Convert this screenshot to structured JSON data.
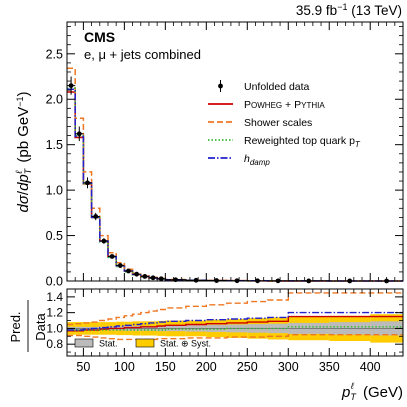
{
  "header": {
    "luminosity": "35.9 fb",
    "luminosity_exp": "−1",
    "energy": "(13 TeV)",
    "experiment": "CMS",
    "channel": "e, μ + jets combined"
  },
  "chart_data": {
    "type": "line",
    "upper": {
      "ylabel": "dσ/dp_T^ℓ (pb GeV⁻¹)",
      "ylim": [
        0,
        2.85
      ],
      "yticks": [
        0,
        0.5,
        1.0,
        1.5,
        2.0,
        2.5
      ],
      "ytick_labels": [
        "0.0",
        "0.5",
        "1.0",
        "1.5",
        "2.0",
        "2.5"
      ],
      "bin_edges": [
        30,
        40,
        50,
        60,
        70,
        80,
        90,
        100,
        110,
        120,
        130,
        140,
        150,
        175,
        200,
        225,
        250,
        275,
        300,
        350,
        400,
        440
      ],
      "series": [
        {
          "name": "Unfolded data",
          "style": "points",
          "color": "#000000",
          "values": [
            2.15,
            1.62,
            1.08,
            0.71,
            0.44,
            0.27,
            0.17,
            0.11,
            0.075,
            0.05,
            0.035,
            0.025,
            0.014,
            0.008,
            0.005,
            0.003,
            0.002,
            0.0015,
            0.001,
            0.0005,
            0.0003
          ],
          "errors": [
            0.1,
            0.08,
            0.06,
            0.04,
            0.03,
            0.02,
            0.015,
            0.01,
            0.008,
            0.006,
            0.005,
            0.004,
            0.003,
            0.002,
            0.0015,
            0.001,
            0.001,
            0.001,
            0.0005,
            0.0003,
            0.0002
          ]
        },
        {
          "name": "POWHEG + PYTHIA",
          "style": "step",
          "color": "#cc0000",
          "values": [
            2.08,
            1.58,
            1.07,
            0.7,
            0.44,
            0.27,
            0.17,
            0.11,
            0.072,
            0.048,
            0.033,
            0.023,
            0.013,
            0.0075,
            0.0045,
            0.003,
            0.002,
            0.0012,
            0.0008,
            0.0004,
            0.0002
          ]
        },
        {
          "name": "Shower scales",
          "style": "step-dashed",
          "color": "#ee7722",
          "values": [
            2.34,
            1.79,
            1.2,
            0.8,
            0.5,
            0.31,
            0.2,
            0.13,
            0.085,
            0.057,
            0.04,
            0.028,
            0.016,
            0.009,
            0.0055,
            0.0035,
            0.0024,
            0.0015,
            0.001,
            0.0005,
            0.0003
          ]
        },
        {
          "name": "Reweighted top quark p_T",
          "style": "step-dotted",
          "color": "#33bb33",
          "values": [
            2.12,
            1.6,
            1.07,
            0.7,
            0.43,
            0.26,
            0.16,
            0.1,
            0.068,
            0.045,
            0.031,
            0.021,
            0.012,
            0.007,
            0.004,
            0.0027,
            0.0018,
            0.0011,
            0.0007,
            0.00035,
            0.00018
          ]
        },
        {
          "name": "h_damp",
          "style": "step-dashdot",
          "color": "#2222cc",
          "values": [
            2.11,
            1.59,
            1.08,
            0.7,
            0.44,
            0.27,
            0.17,
            0.11,
            0.073,
            0.049,
            0.034,
            0.024,
            0.0135,
            0.0078,
            0.0047,
            0.0031,
            0.0021,
            0.0013,
            0.00085,
            0.00042,
            0.00022
          ]
        }
      ]
    },
    "ratio": {
      "ylabel": "Pred. / Data",
      "ylim": [
        0.65,
        1.5
      ],
      "yticks": [
        0.8,
        1.0,
        1.2,
        1.4
      ],
      "ytick_labels": [
        "0.8",
        "1.0",
        "1.2",
        "1.4"
      ],
      "bin_edges": [
        30,
        40,
        50,
        60,
        70,
        80,
        90,
        100,
        110,
        120,
        130,
        140,
        150,
        175,
        200,
        225,
        250,
        275,
        300,
        350,
        400,
        440
      ],
      "stat_band": {
        "name": "Stat.",
        "color": "#bbbbbb",
        "halfwidths": [
          0.02,
          0.02,
          0.02,
          0.02,
          0.02,
          0.025,
          0.025,
          0.03,
          0.03,
          0.03,
          0.03,
          0.035,
          0.035,
          0.04,
          0.045,
          0.05,
          0.055,
          0.06,
          0.07,
          0.08,
          0.09
        ]
      },
      "total_band": {
        "name": "Stat. ⊕ Syst.",
        "color": "#ffcc00",
        "halfwidths": [
          0.08,
          0.08,
          0.08,
          0.08,
          0.08,
          0.08,
          0.085,
          0.085,
          0.09,
          0.09,
          0.09,
          0.095,
          0.1,
          0.1,
          0.11,
          0.12,
          0.13,
          0.14,
          0.15,
          0.16,
          0.18
        ]
      },
      "series": [
        {
          "name": "POWHEG + PYTHIA",
          "color": "#cc0000",
          "values": [
            0.97,
            0.97,
            0.98,
            0.98,
            0.99,
            1.0,
            1.0,
            1.01,
            1.01,
            1.02,
            1.02,
            1.03,
            1.04,
            1.05,
            1.06,
            1.07,
            1.08,
            1.09,
            1.15,
            1.15,
            1.15
          ]
        },
        {
          "name": "Shower scales up",
          "color": "#ee7722",
          "values": [
            1.05,
            1.06,
            1.07,
            1.08,
            1.1,
            1.12,
            1.14,
            1.16,
            1.18,
            1.2,
            1.22,
            1.24,
            1.26,
            1.28,
            1.3,
            1.32,
            1.34,
            1.36,
            1.45,
            1.45,
            1.45
          ]
        },
        {
          "name": "Shower scales down",
          "color": "#ee7722",
          "values": [
            0.91,
            0.91,
            0.9,
            0.89,
            0.88,
            0.87,
            0.86,
            0.86,
            0.86,
            0.86,
            0.86,
            0.87,
            0.87,
            0.88,
            0.88,
            0.89,
            0.89,
            0.9,
            0.92,
            0.92,
            0.92
          ]
        },
        {
          "name": "Reweighted top quark p_T",
          "color": "#33bb33",
          "values": [
            0.98,
            0.98,
            0.98,
            0.98,
            0.98,
            0.98,
            0.98,
            0.98,
            0.98,
            0.98,
            0.98,
            0.98,
            0.99,
            0.99,
            0.99,
            1.0,
            1.0,
            1.0,
            1.02,
            1.02,
            1.02
          ]
        },
        {
          "name": "h_damp",
          "color": "#2222cc",
          "values": [
            0.98,
            0.98,
            0.99,
            1.0,
            1.01,
            1.02,
            1.03,
            1.04,
            1.05,
            1.06,
            1.07,
            1.08,
            1.09,
            1.1,
            1.11,
            1.12,
            1.13,
            1.14,
            1.2,
            1.2,
            1.2
          ]
        }
      ]
    },
    "xlabel": "p_T^ℓ (GeV)",
    "xlim": [
      30,
      440
    ],
    "xticks": [
      50,
      100,
      150,
      200,
      250,
      300,
      350,
      400
    ],
    "xtick_labels": [
      "50",
      "100",
      "150",
      "200",
      "250",
      "300",
      "350",
      "400"
    ],
    "legend": {
      "placement": "right",
      "entries": [
        {
          "label": "Unfolded data",
          "marker": "point"
        },
        {
          "label": "Powheg + Pythia",
          "marker": "solid",
          "color": "#cc0000"
        },
        {
          "label": "Shower scales",
          "marker": "dashed",
          "color": "#ee7722"
        },
        {
          "label": "Reweighted top quark p",
          "sub": "T",
          "marker": "dotted",
          "color": "#33bb33"
        },
        {
          "label": "h",
          "sub": "damp",
          "marker": "dashdot",
          "color": "#2222cc"
        }
      ],
      "ratio_entries": [
        {
          "label": "Stat.",
          "color": "#bbbbbb"
        },
        {
          "label": "Stat. ⊕ Syst.",
          "color": "#ffcc00"
        }
      ]
    }
  }
}
